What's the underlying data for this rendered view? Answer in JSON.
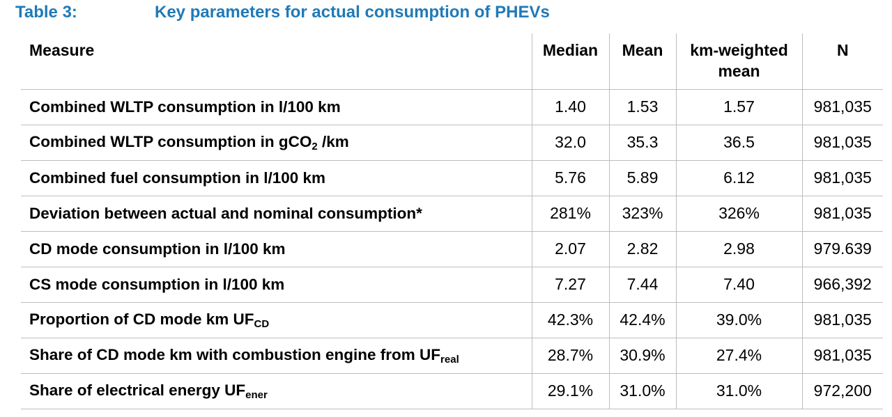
{
  "caption": {
    "number": "Table 3:",
    "title": "Key parameters for actual consumption of PHEVs"
  },
  "columns": {
    "measure": "Measure",
    "median": "Median",
    "mean": "Mean",
    "km_weighted_line1": "km-weighted",
    "km_weighted_line2": "mean",
    "n": "N"
  },
  "rows": [
    {
      "label": "Combined WLTP consumption in l/100 km",
      "label_sub": "",
      "label_after": "",
      "median": "1.40",
      "mean": "1.53",
      "km_weighted": "1.57",
      "n": "981,035"
    },
    {
      "label": "Combined WLTP consumption in gCO",
      "label_sub": "2",
      "label_after": " /km",
      "median": "32.0",
      "mean": "35.3",
      "km_weighted": "36.5",
      "n": "981,035"
    },
    {
      "label": "Combined fuel consumption in l/100 km",
      "label_sub": "",
      "label_after": "",
      "median": "5.76",
      "mean": "5.89",
      "km_weighted": "6.12",
      "n": "981,035"
    },
    {
      "label": "Deviation between actual and nominal consumption*",
      "label_sub": "",
      "label_after": "",
      "median": "281%",
      "mean": "323%",
      "km_weighted": "326%",
      "n": "981,035"
    },
    {
      "label": "CD mode consumption in l/100 km",
      "label_sub": "",
      "label_after": "",
      "median": "2.07",
      "mean": "2.82",
      "km_weighted": "2.98",
      "n": "979.639"
    },
    {
      "label": "CS mode consumption in l/100 km",
      "label_sub": "",
      "label_after": "",
      "median": "7.27",
      "mean": "7.44",
      "km_weighted": "7.40",
      "n": "966,392"
    },
    {
      "label": "Proportion of CD mode km UF",
      "label_sub": "CD",
      "label_after": "",
      "median": "42.3%",
      "mean": "42.4%",
      "km_weighted": "39.0%",
      "n": "981,035"
    },
    {
      "label": "Share of CD mode km with combustion engine from UF",
      "label_sub": "real",
      "label_after": "",
      "median": "28.7%",
      "mean": "30.9%",
      "km_weighted": "27.4%",
      "n": "981,035"
    },
    {
      "label": "Share of electrical energy UF",
      "label_sub": "ener",
      "label_after": "",
      "median": "29.1%",
      "mean": "31.0%",
      "km_weighted": "31.0%",
      "n": "972,200"
    }
  ]
}
